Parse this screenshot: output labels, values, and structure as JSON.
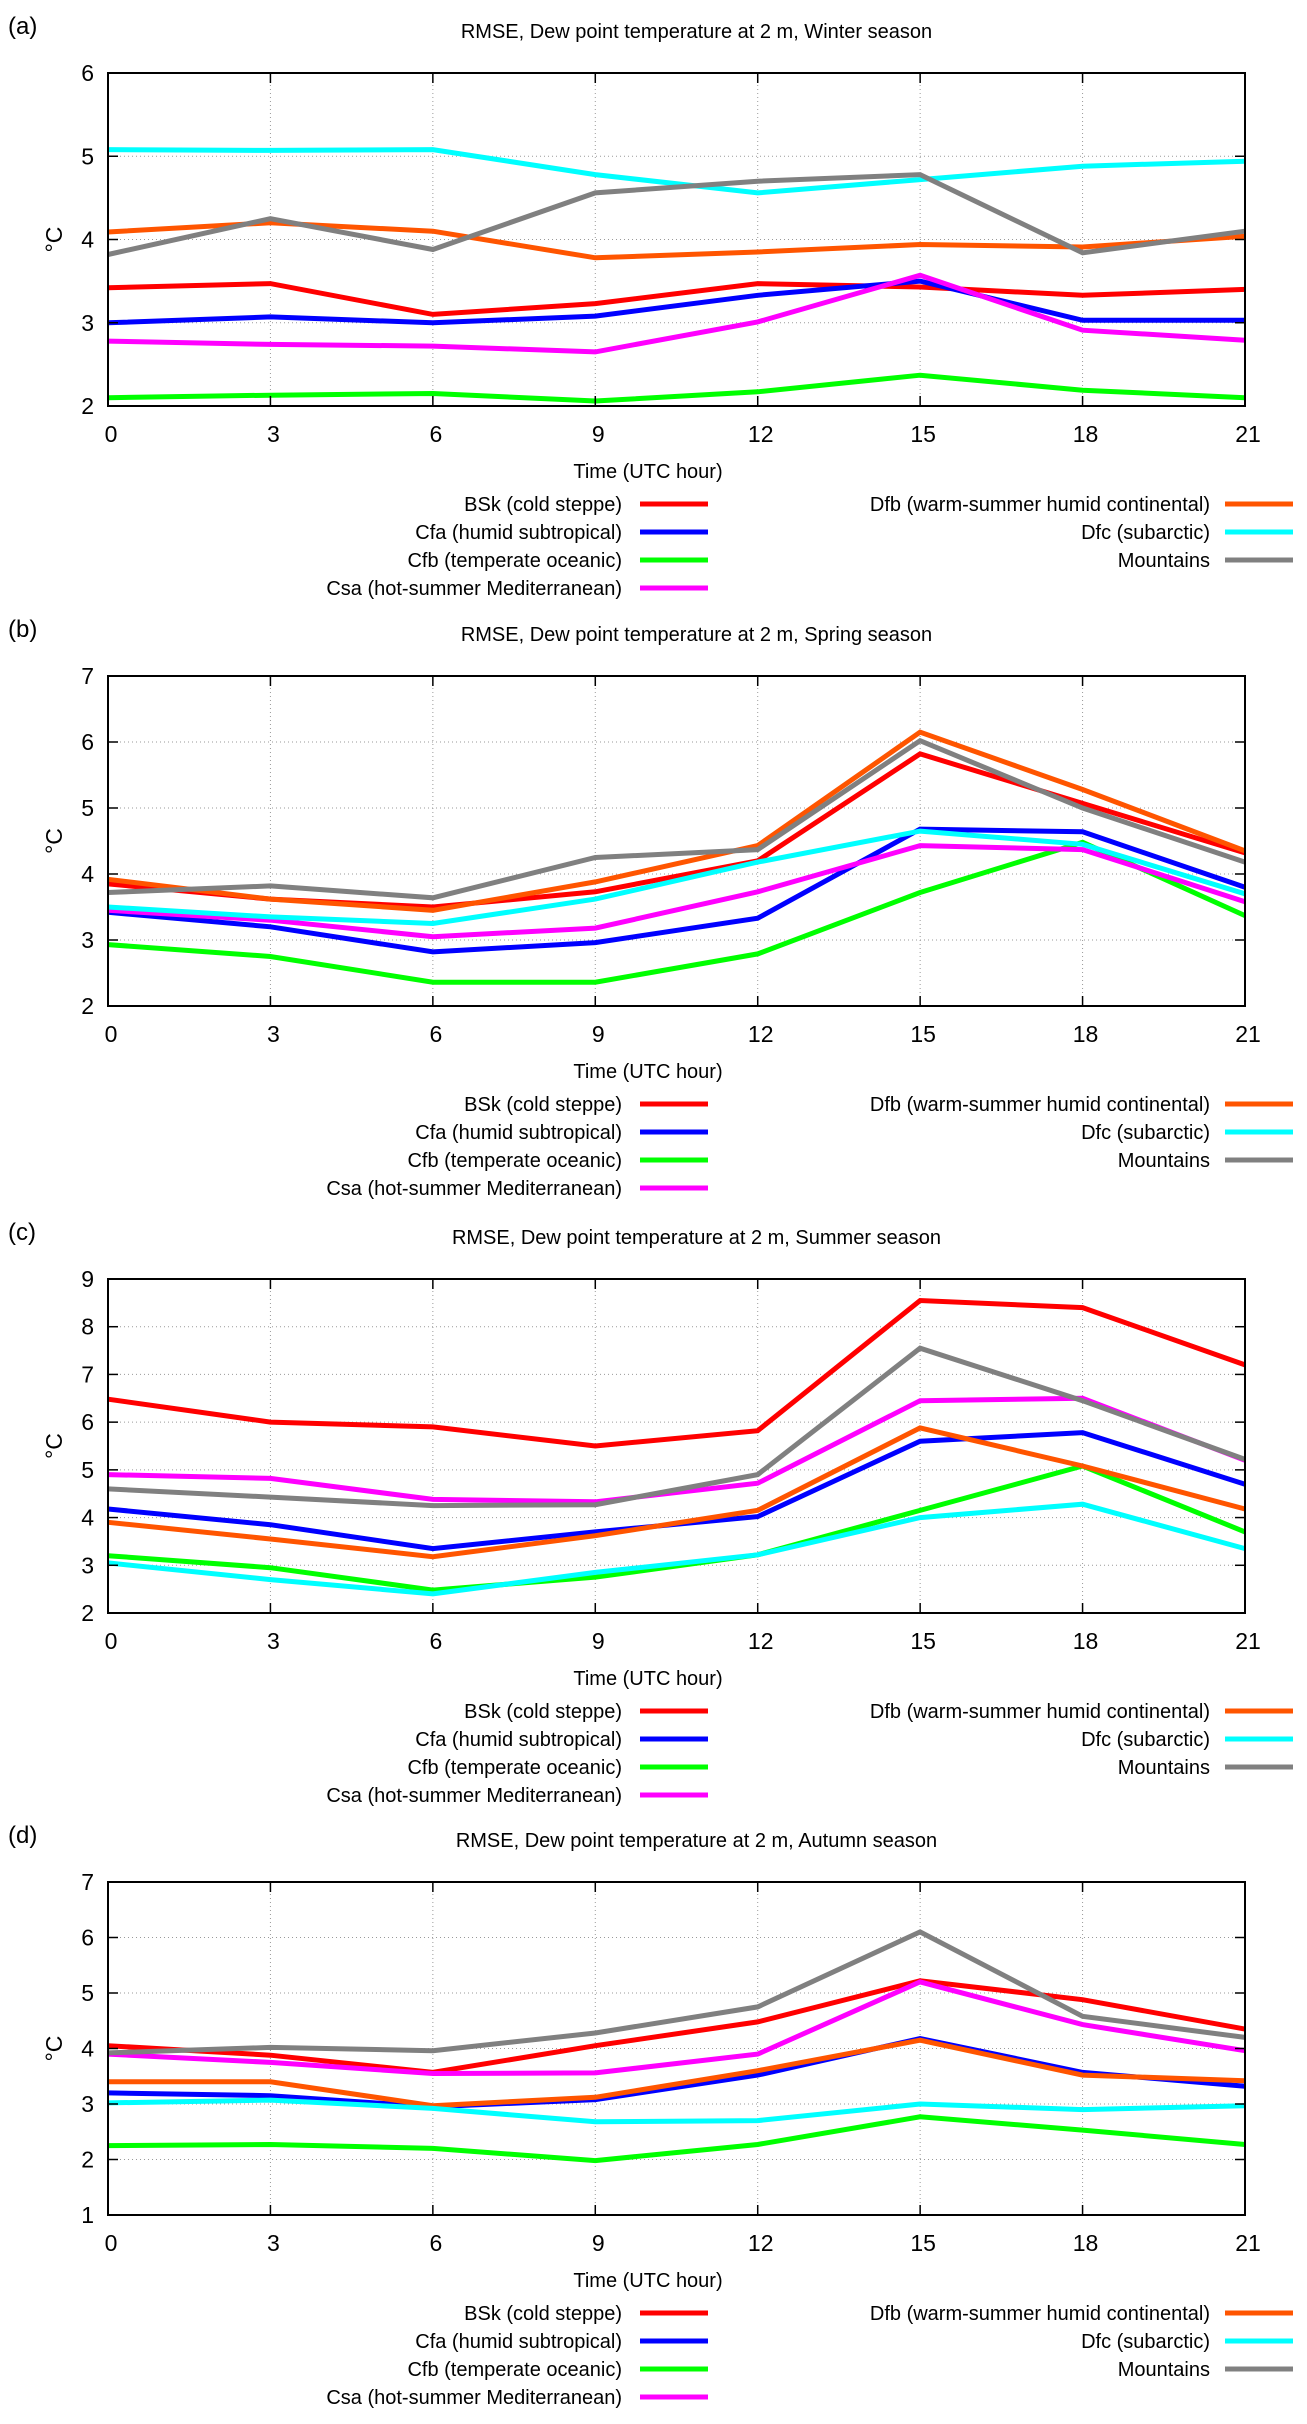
{
  "chart_data": [
    {
      "type": "line",
      "panel_label": "(a)",
      "title": "RMSE, Dew point temperature at 2 m, Winter season",
      "xlabel": "Time (UTC hour)",
      "ylabel": "°C",
      "x": [
        0,
        3,
        6,
        9,
        12,
        15,
        18,
        21
      ],
      "xlim": [
        0,
        21
      ],
      "ylim": [
        2,
        6
      ],
      "yticks": [
        2,
        3,
        4,
        5,
        6
      ],
      "grid": true,
      "legend_position": "below",
      "series": [
        {
          "name": "BSk (cold steppe)",
          "color": "#ff0000",
          "values": [
            3.42,
            3.47,
            3.1,
            3.23,
            3.47,
            3.43,
            3.33,
            3.4
          ]
        },
        {
          "name": "Cfa (humid subtropical)",
          "color": "#0000ff",
          "values": [
            3.0,
            3.07,
            3.0,
            3.08,
            3.33,
            3.5,
            3.03,
            3.03
          ]
        },
        {
          "name": "Cfb (temperate oceanic)",
          "color": "#00ff00",
          "values": [
            2.1,
            2.13,
            2.15,
            2.06,
            2.17,
            2.37,
            2.19,
            2.1
          ]
        },
        {
          "name": "Csa (hot-summer Mediterranean)",
          "color": "#ff00ff",
          "values": [
            2.78,
            2.74,
            2.72,
            2.65,
            3.01,
            3.57,
            2.91,
            2.79
          ]
        },
        {
          "name": "Dfb (warm-summer humid continental)",
          "color": "#ff5500",
          "values": [
            4.09,
            4.2,
            4.1,
            3.78,
            3.85,
            3.94,
            3.91,
            4.04
          ]
        },
        {
          "name": "Dfc (subarctic)",
          "color": "#00ffff",
          "values": [
            5.08,
            5.07,
            5.08,
            4.78,
            4.56,
            4.72,
            4.88,
            4.94
          ]
        },
        {
          "name": "Mountains",
          "color": "#808080",
          "values": [
            3.82,
            4.25,
            3.88,
            4.56,
            4.7,
            4.78,
            3.84,
            4.1
          ]
        }
      ]
    },
    {
      "type": "line",
      "panel_label": "(b)",
      "title": "RMSE, Dew point temperature at 2 m, Spring season",
      "xlabel": "Time (UTC hour)",
      "ylabel": "°C",
      "x": [
        0,
        3,
        6,
        9,
        12,
        15,
        18,
        21
      ],
      "xlim": [
        0,
        21
      ],
      "ylim": [
        2,
        7
      ],
      "yticks": [
        2,
        3,
        4,
        5,
        6,
        7
      ],
      "grid": true,
      "legend_position": "below",
      "series": [
        {
          "name": "BSk (cold steppe)",
          "color": "#ff0000",
          "values": [
            3.85,
            3.62,
            3.5,
            3.73,
            4.2,
            5.82,
            5.07,
            4.32
          ]
        },
        {
          "name": "Cfa (humid subtropical)",
          "color": "#0000ff",
          "values": [
            3.42,
            3.2,
            2.82,
            2.96,
            3.33,
            4.68,
            4.64,
            3.8
          ]
        },
        {
          "name": "Cfb (temperate oceanic)",
          "color": "#00ff00",
          "values": [
            2.93,
            2.75,
            2.36,
            2.36,
            2.79,
            3.72,
            4.48,
            3.37
          ]
        },
        {
          "name": "Csa (hot-summer Mediterranean)",
          "color": "#ff00ff",
          "values": [
            3.45,
            3.3,
            3.05,
            3.18,
            3.73,
            4.43,
            4.37,
            3.58
          ]
        },
        {
          "name": "Dfb (warm-summer humid continental)",
          "color": "#ff5500",
          "values": [
            3.92,
            3.62,
            3.45,
            3.88,
            4.43,
            6.15,
            5.28,
            4.35
          ]
        },
        {
          "name": "Dfc (subarctic)",
          "color": "#00ffff",
          "values": [
            3.5,
            3.35,
            3.25,
            3.62,
            4.18,
            4.65,
            4.45,
            3.7
          ]
        },
        {
          "name": "Mountains",
          "color": "#808080",
          "values": [
            3.72,
            3.82,
            3.64,
            4.25,
            4.37,
            6.02,
            5.0,
            4.18
          ]
        }
      ]
    },
    {
      "type": "line",
      "panel_label": "(c)",
      "title": "RMSE, Dew point temperature at 2 m, Summer season",
      "xlabel": "Time (UTC hour)",
      "ylabel": "°C",
      "x": [
        0,
        3,
        6,
        9,
        12,
        15,
        18,
        21
      ],
      "xlim": [
        0,
        21
      ],
      "ylim": [
        2,
        9
      ],
      "yticks": [
        2,
        3,
        4,
        5,
        6,
        7,
        8,
        9
      ],
      "grid": true,
      "legend_position": "below",
      "series": [
        {
          "name": "BSk (cold steppe)",
          "color": "#ff0000",
          "values": [
            6.48,
            6.0,
            5.9,
            5.5,
            5.82,
            8.55,
            8.4,
            7.2
          ]
        },
        {
          "name": "Cfa (humid subtropical)",
          "color": "#0000ff",
          "values": [
            4.18,
            3.85,
            3.35,
            3.7,
            4.02,
            5.6,
            5.78,
            4.7
          ]
        },
        {
          "name": "Cfb (temperate oceanic)",
          "color": "#00ff00",
          "values": [
            3.2,
            2.95,
            2.48,
            2.75,
            3.22,
            4.15,
            5.08,
            3.7
          ]
        },
        {
          "name": "Csa (hot-summer Mediterranean)",
          "color": "#ff00ff",
          "values": [
            4.9,
            4.82,
            4.38,
            4.33,
            4.72,
            6.45,
            6.5,
            5.2
          ]
        },
        {
          "name": "Dfb (warm-summer humid continental)",
          "color": "#ff5500",
          "values": [
            3.9,
            3.55,
            3.18,
            3.62,
            4.15,
            5.88,
            5.08,
            4.18
          ]
        },
        {
          "name": "Dfc (subarctic)",
          "color": "#00ffff",
          "values": [
            3.05,
            2.7,
            2.4,
            2.85,
            3.22,
            4.0,
            4.28,
            3.35
          ]
        },
        {
          "name": "Mountains",
          "color": "#808080",
          "values": [
            4.6,
            4.43,
            4.25,
            4.27,
            4.9,
            7.55,
            6.45,
            5.22
          ]
        }
      ]
    },
    {
      "type": "line",
      "panel_label": "(d)",
      "title": "RMSE, Dew point temperature at 2 m, Autumn season",
      "xlabel": "Time (UTC hour)",
      "ylabel": "°C",
      "x": [
        0,
        3,
        6,
        9,
        12,
        15,
        18,
        21
      ],
      "xlim": [
        0,
        21
      ],
      "ylim": [
        1,
        7
      ],
      "yticks": [
        1,
        2,
        3,
        4,
        5,
        6,
        7
      ],
      "grid": true,
      "legend_position": "below",
      "series": [
        {
          "name": "BSk (cold steppe)",
          "color": "#ff0000",
          "values": [
            4.05,
            3.88,
            3.57,
            4.05,
            4.48,
            5.22,
            4.88,
            4.35
          ]
        },
        {
          "name": "Cfa (humid subtropical)",
          "color": "#0000ff",
          "values": [
            3.2,
            3.15,
            2.95,
            3.08,
            3.52,
            4.18,
            3.57,
            3.32
          ]
        },
        {
          "name": "Cfb (temperate oceanic)",
          "color": "#00ff00",
          "values": [
            2.25,
            2.27,
            2.2,
            1.98,
            2.27,
            2.77,
            2.53,
            2.27
          ]
        },
        {
          "name": "Csa (hot-summer Mediterranean)",
          "color": "#ff00ff",
          "values": [
            3.9,
            3.75,
            3.55,
            3.56,
            3.9,
            5.2,
            4.43,
            3.96
          ]
        },
        {
          "name": "Dfb (warm-summer humid continental)",
          "color": "#ff5500",
          "values": [
            3.4,
            3.4,
            2.97,
            3.12,
            3.6,
            4.15,
            3.52,
            3.42
          ]
        },
        {
          "name": "Dfc (subarctic)",
          "color": "#00ffff",
          "values": [
            3.02,
            3.07,
            2.92,
            2.68,
            2.7,
            3.0,
            2.9,
            2.97
          ]
        },
        {
          "name": "Mountains",
          "color": "#808080",
          "values": [
            3.92,
            4.02,
            3.96,
            4.28,
            4.75,
            6.1,
            4.58,
            4.2
          ]
        }
      ]
    }
  ]
}
